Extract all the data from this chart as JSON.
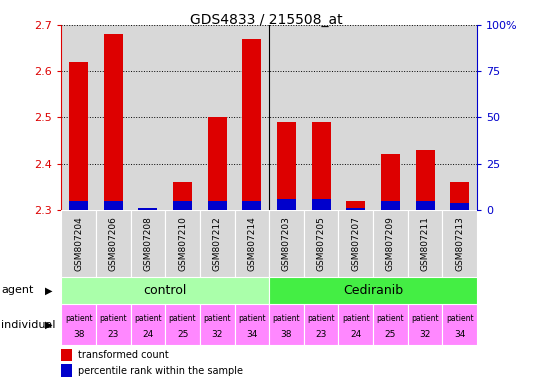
{
  "title": "GDS4833 / 215508_at",
  "samples": [
    "GSM807204",
    "GSM807206",
    "GSM807208",
    "GSM807210",
    "GSM807212",
    "GSM807214",
    "GSM807203",
    "GSM807205",
    "GSM807207",
    "GSM807209",
    "GSM807211",
    "GSM807213"
  ],
  "transformed_count": [
    2.62,
    2.68,
    2.3,
    2.36,
    2.5,
    2.67,
    2.49,
    2.49,
    2.32,
    2.42,
    2.43,
    2.36
  ],
  "percentile_rank_pct": [
    5,
    5,
    1,
    5,
    5,
    5,
    6,
    6,
    1,
    5,
    5,
    4
  ],
  "ylim": [
    2.3,
    2.7
  ],
  "y2lim": [
    0,
    100
  ],
  "yticks": [
    2.3,
    2.4,
    2.5,
    2.6,
    2.7
  ],
  "y2ticks": [
    0,
    25,
    50,
    75,
    100
  ],
  "y2ticklabels": [
    "0",
    "25",
    "50",
    "75",
    "100%"
  ],
  "bar_color_red": "#dd0000",
  "bar_color_blue": "#0000cc",
  "agent_control_color": "#aaffaa",
  "agent_cediranib_color": "#44ee44",
  "individual_color": "#ff88ff",
  "tick_color_left": "#dd0000",
  "tick_color_right": "#0000cc",
  "col_bg_color": "#d8d8d8",
  "base_value": 2.3,
  "bar_width": 0.55,
  "individual_labels_top": [
    "patient",
    "patient",
    "patient",
    "patient",
    "patient",
    "patient",
    "patient",
    "patient",
    "patient",
    "patient",
    "patient",
    "patient"
  ],
  "individual_labels_bot": [
    "38",
    "23",
    "24",
    "25",
    "32",
    "34",
    "38",
    "23",
    "24",
    "25",
    "32",
    "34"
  ]
}
